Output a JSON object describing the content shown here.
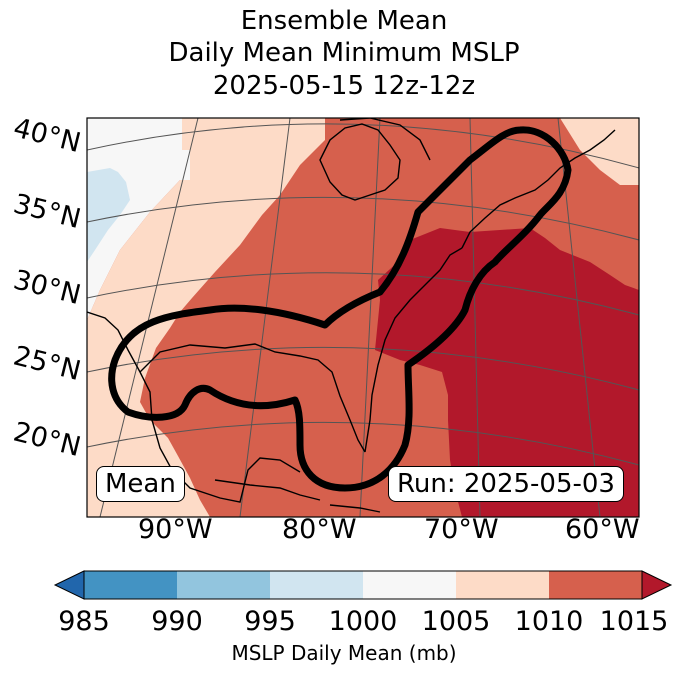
{
  "title": {
    "line1": "Ensemble Mean",
    "line2": "Daily Mean Minimum MSLP",
    "line3": "2025-05-15 12z-12z"
  },
  "map": {
    "lat_labels": [
      "40°N",
      "35°N",
      "30°N",
      "25°N",
      "20°N"
    ],
    "lon_labels": [
      "90°W",
      "80°W",
      "70°W",
      "60°W"
    ],
    "mean_label": "Mean",
    "run_label": "Run: 2025-05-03"
  },
  "colorbar": {
    "ticks": [
      "985",
      "990",
      "995",
      "1000",
      "1005",
      "1010",
      "1015"
    ],
    "label": "MSLP Daily Mean (mb)",
    "colors": {
      "below_985": "#2166ac",
      "985_990": "#4393c3",
      "990_995": "#92c5de",
      "995_1000": "#d1e5f0",
      "1000_1005": "#f7f7f7",
      "1005_1010": "#fddbc7",
      "1010_1015": "#d6604d",
      "above_1015": "#b2182b"
    }
  }
}
